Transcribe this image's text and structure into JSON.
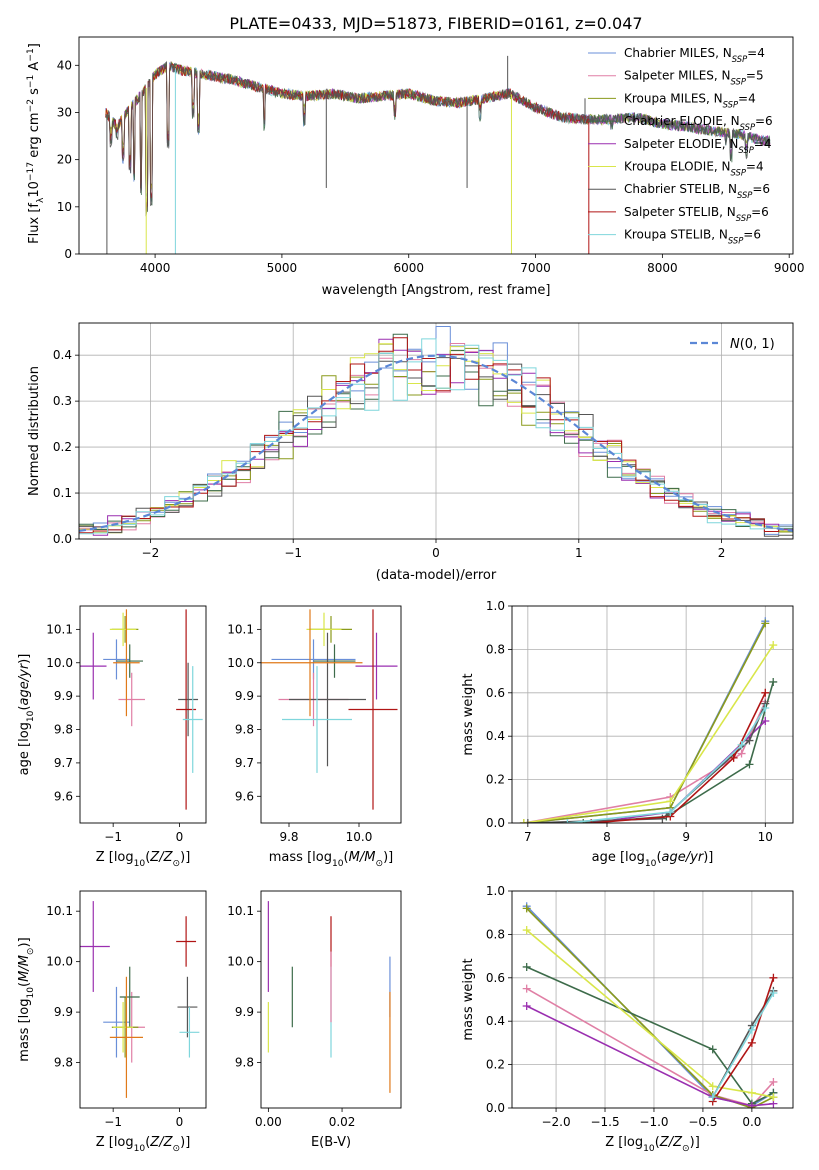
{
  "figure_title": "PLATE=0433, MJD=51873, FIBERID=0161, z=0.047",
  "colors": {
    "Chabrier MILES": "#6a8fd8",
    "Salpeter MILES": "#e07fa5",
    "Kroupa MILES": "#8a9a1c",
    "Chabrier ELODIE": "#3d6b4a",
    "Salpeter ELODIE": "#9a2fb0",
    "Kroupa ELODIE": "#d9e64a",
    "Chabrier STELIB": "#555555",
    "Salpeter STELIB": "#b01515",
    "Kroupa STELIB": "#7fd6dc",
    "gauss": "#5b87d6",
    "grid": "#b0b0b0",
    "orange": "#e07a1a"
  },
  "chart_data": [
    {
      "id": "spectrum",
      "type": "line",
      "title": "PLATE=0433, MJD=51873, FIBERID=0161, z=0.047",
      "xlabel": "wavelength [Angstrom, rest frame]",
      "ylabel": "Flux [f_λ10^-17 erg cm^-2 s^-1 A^-1]",
      "xlim": [
        3400,
        9030
      ],
      "ylim": [
        0,
        46
      ],
      "xticks": [
        "4000",
        "5000",
        "6000",
        "7000",
        "8000",
        "9000"
      ],
      "yticks": [
        "0",
        "10",
        "20",
        "30",
        "40"
      ],
      "grid": false,
      "legend": "upper-right",
      "legend_entries": [
        {
          "name": "Chabrier MILES",
          "nssp": "4"
        },
        {
          "name": "Salpeter MILES",
          "nssp": "5"
        },
        {
          "name": "Kroupa MILES",
          "nssp": "4"
        },
        {
          "name": "Chabrier ELODIE",
          "nssp": "6"
        },
        {
          "name": "Salpeter ELODIE",
          "nssp": "4"
        },
        {
          "name": "Kroupa ELODIE",
          "nssp": "4"
        },
        {
          "name": "Chabrier STELIB",
          "nssp": "6"
        },
        {
          "name": "Salpeter STELIB",
          "nssp": "6"
        },
        {
          "name": "Kroupa STELIB",
          "nssp": "6"
        }
      ],
      "continuum": [
        [
          3610,
          30
        ],
        [
          3700,
          27
        ],
        [
          3800,
          31
        ],
        [
          3900,
          34
        ],
        [
          4000,
          38
        ],
        [
          4100,
          40
        ],
        [
          4200,
          39
        ],
        [
          4400,
          38
        ],
        [
          4600,
          37
        ],
        [
          4800,
          35.5
        ],
        [
          5000,
          34
        ],
        [
          5200,
          33.5
        ],
        [
          5400,
          34
        ],
        [
          5600,
          33
        ],
        [
          5800,
          33.5
        ],
        [
          6000,
          34
        ],
        [
          6200,
          32.5
        ],
        [
          6400,
          32
        ],
        [
          6600,
          33
        ],
        [
          6800,
          34
        ],
        [
          7000,
          31
        ],
        [
          7200,
          29
        ],
        [
          7400,
          28.5
        ],
        [
          7600,
          28.5
        ],
        [
          7800,
          29
        ],
        [
          8000,
          27.5
        ],
        [
          8200,
          27
        ],
        [
          8400,
          26
        ],
        [
          8600,
          25.5
        ],
        [
          8800,
          24
        ]
      ],
      "absorption_lines": [
        [
          3650,
          22
        ],
        [
          3700,
          24
        ],
        [
          3750,
          19
        ],
        [
          3800,
          17
        ],
        [
          3835,
          15
        ],
        [
          3889,
          12
        ],
        [
          3934,
          8
        ],
        [
          3968,
          10
        ],
        [
          4101,
          22
        ],
        [
          4300,
          28
        ],
        [
          4340,
          25
        ],
        [
          4861,
          26
        ],
        [
          5175,
          27
        ],
        [
          5890,
          28
        ],
        [
          6563,
          28
        ],
        [
          7600,
          26
        ],
        [
          8498,
          23
        ],
        [
          8542,
          19
        ],
        [
          8662,
          20
        ]
      ],
      "spikes": [
        [
          4160,
          0,
          "Kroupa STELIB"
        ],
        [
          3930,
          0,
          "Kroupa ELODIE"
        ],
        [
          6810,
          0,
          "Kroupa ELODIE"
        ],
        [
          7420,
          0,
          "Salpeter STELIB"
        ],
        [
          3620,
          0,
          "Chabrier STELIB"
        ],
        [
          6780,
          42,
          "Chabrier STELIB"
        ],
        [
          5350,
          14,
          "Chabrier STELIB"
        ],
        [
          6460,
          14,
          "Chabrier STELIB"
        ],
        [
          7390,
          33,
          "Chabrier STELIB"
        ]
      ]
    },
    {
      "id": "residuals",
      "type": "histogram",
      "xlabel": "(data-model)/error",
      "ylabel": "Normed distribution",
      "xlim": [
        -2.5,
        2.5
      ],
      "ylim": [
        0,
        0.47
      ],
      "xticks": [
        "−2",
        "−1",
        "0",
        "1",
        "2"
      ],
      "yticks": [
        "0.0",
        "0.1",
        "0.2",
        "0.3",
        "0.4"
      ],
      "grid": true,
      "legend": "upper-right",
      "legend_label": "N(0,1)",
      "bin_width": 0.1,
      "curve": "gaussian(0,1)"
    },
    {
      "id": "age_vs_Z",
      "type": "scatter",
      "xlabel": "Z [log10(Z/Z_sun)]",
      "ylabel": "age [log10(age/yr)]",
      "xlim": [
        -1.5,
        0.4
      ],
      "ylim": [
        9.52,
        10.17
      ],
      "xticks": [
        "−1",
        "0"
      ],
      "yticks": [
        "9.6",
        "9.7",
        "9.8",
        "9.9",
        "10.0",
        "10.1"
      ],
      "points": [
        {
          "series": "Chabrier MILES",
          "x": -0.95,
          "y": 10.01,
          "xerr": 0.2,
          "yerr": 0.06
        },
        {
          "series": "Salpeter MILES",
          "x": -0.72,
          "y": 9.89,
          "xerr": 0.2,
          "yerr": 0.08
        },
        {
          "series": "Kroupa MILES",
          "x": -0.82,
          "y": 10.1,
          "xerr": 0.2,
          "yerr": 0.04
        },
        {
          "series": "Chabrier ELODIE",
          "x": -0.75,
          "y": 10.005,
          "xerr": 0.2,
          "yerr": 0.05
        },
        {
          "series": "Salpeter ELODIE",
          "x": -1.3,
          "y": 9.99,
          "xerr": 0.2,
          "yerr": 0.1
        },
        {
          "series": "Kroupa ELODIE",
          "x": -0.85,
          "y": 10.1,
          "xerr": 0.2,
          "yerr": 0.05
        },
        {
          "series": "Chabrier STELIB",
          "x": 0.13,
          "y": 9.89,
          "xerr": 0.15,
          "yerr": 0.11
        },
        {
          "series": "Salpeter STELIB",
          "x": 0.1,
          "y": 9.86,
          "xerr": 0.15,
          "yerr": 0.3
        },
        {
          "series": "Kroupa STELIB",
          "x": 0.2,
          "y": 9.83,
          "xerr": 0.15,
          "yerr": 0.16
        },
        {
          "series": "orange",
          "x": -0.8,
          "y": 10.0,
          "xerr": 0.2,
          "yerr": 0.16
        }
      ]
    },
    {
      "id": "age_vs_mass",
      "type": "scatter",
      "xlabel": "mass [log10(M/M_sun)]",
      "ylabel": "",
      "xlim": [
        9.72,
        10.12
      ],
      "ylim": [
        9.52,
        10.17
      ],
      "xticks": [
        "9.8",
        "10.0"
      ],
      "yticks": [
        "9.6",
        "9.7",
        "9.8",
        "9.9",
        "10.0",
        "10.1"
      ],
      "points": [
        {
          "series": "Chabrier MILES",
          "x": 9.87,
          "y": 10.01,
          "xerr": 0.12,
          "yerr": 0.06
        },
        {
          "series": "Salpeter MILES",
          "x": 9.87,
          "y": 9.89,
          "xerr": 0.1,
          "yerr": 0.08
        },
        {
          "series": "Kroupa MILES",
          "x": 9.92,
          "y": 10.1,
          "xerr": 0.06,
          "yerr": 0.04
        },
        {
          "series": "Chabrier ELODIE",
          "x": 9.93,
          "y": 10.005,
          "xerr": 0.06,
          "yerr": 0.05
        },
        {
          "series": "Salpeter ELODIE",
          "x": 10.05,
          "y": 9.99,
          "xerr": 0.06,
          "yerr": 0.1
        },
        {
          "series": "Kroupa ELODIE",
          "x": 9.9,
          "y": 10.1,
          "xerr": 0.05,
          "yerr": 0.05
        },
        {
          "series": "Chabrier STELIB",
          "x": 9.91,
          "y": 9.89,
          "xerr": 0.11,
          "yerr": 0.2
        },
        {
          "series": "Salpeter STELIB",
          "x": 10.04,
          "y": 9.86,
          "xerr": 0.07,
          "yerr": 0.3
        },
        {
          "series": "Kroupa STELIB",
          "x": 9.88,
          "y": 9.83,
          "xerr": 0.1,
          "yerr": 0.16
        },
        {
          "series": "orange",
          "x": 9.86,
          "y": 10.0,
          "xerr": 0.15,
          "yerr": 0.16
        }
      ]
    },
    {
      "id": "mw_vs_age",
      "type": "line",
      "xlabel": "age [log10(age/yr)]",
      "ylabel": "mass weight",
      "xlim": [
        6.8,
        10.35
      ],
      "ylim": [
        0,
        1.0
      ],
      "xticks": [
        "7",
        "8",
        "9",
        "10"
      ],
      "yticks": [
        "0.0",
        "0.2",
        "0.4",
        "0.6",
        "0.8",
        "1.0"
      ],
      "grid": true,
      "series": [
        {
          "name": "Chabrier MILES",
          "x": [
            6.95,
            8.8,
            10.0
          ],
          "y": [
            0.0,
            0.07,
            0.93
          ]
        },
        {
          "name": "Salpeter MILES",
          "x": [
            6.95,
            8.8,
            9.7,
            10.0
          ],
          "y": [
            0.0,
            0.12,
            0.32,
            0.56
          ]
        },
        {
          "name": "Kroupa MILES",
          "x": [
            6.95,
            8.8,
            10.0
          ],
          "y": [
            0.0,
            0.07,
            0.92
          ]
        },
        {
          "name": "Chabrier ELODIE",
          "x": [
            7.7,
            8.75,
            9.8,
            10.1
          ],
          "y": [
            0.0,
            0.03,
            0.27,
            0.65
          ]
        },
        {
          "name": "Salpeter ELODIE",
          "x": [
            7.8,
            8.8,
            10.0
          ],
          "y": [
            0.0,
            0.05,
            0.47
          ]
        },
        {
          "name": "Kroupa ELODIE",
          "x": [
            6.95,
            8.8,
            10.1
          ],
          "y": [
            0.0,
            0.1,
            0.82
          ]
        },
        {
          "name": "Chabrier STELIB",
          "x": [
            7.0,
            8.7,
            9.8,
            10.0
          ],
          "y": [
            0.0,
            0.02,
            0.38,
            0.55
          ]
        },
        {
          "name": "Salpeter STELIB",
          "x": [
            7.8,
            8.8,
            9.6,
            10.0
          ],
          "y": [
            0.0,
            0.03,
            0.3,
            0.6
          ]
        },
        {
          "name": "Kroupa STELIB",
          "x": [
            7.5,
            8.8,
            9.7,
            10.0
          ],
          "y": [
            0.0,
            0.05,
            0.36,
            0.53
          ]
        }
      ]
    },
    {
      "id": "mass_vs_Z",
      "type": "scatter",
      "xlabel": "Z [log10(Z/Z_sun)]",
      "ylabel": "mass [log10(M/M_sun)]",
      "xlim": [
        -1.5,
        0.4
      ],
      "ylim": [
        9.71,
        10.14
      ],
      "xticks": [
        "−1",
        "0"
      ],
      "yticks": [
        "9.8",
        "9.9",
        "10.0",
        "10.1"
      ],
      "points": [
        {
          "series": "Chabrier MILES",
          "x": -0.95,
          "y": 9.88,
          "xerr": 0.2,
          "yerr": 0.07
        },
        {
          "series": "Salpeter MILES",
          "x": -0.72,
          "y": 9.87,
          "xerr": 0.2,
          "yerr": 0.07
        },
        {
          "series": "Kroupa MILES",
          "x": -0.82,
          "y": 9.87,
          "xerr": 0.2,
          "yerr": 0.06
        },
        {
          "series": "Chabrier ELODIE",
          "x": -0.75,
          "y": 9.93,
          "xerr": 0.15,
          "yerr": 0.06
        },
        {
          "series": "Salpeter ELODIE",
          "x": -1.3,
          "y": 10.03,
          "xerr": 0.25,
          "yerr": 0.09
        },
        {
          "series": "Kroupa ELODIE",
          "x": -0.85,
          "y": 9.87,
          "xerr": 0.15,
          "yerr": 0.05
        },
        {
          "series": "Chabrier STELIB",
          "x": 0.12,
          "y": 9.91,
          "xerr": 0.15,
          "yerr": 0.06
        },
        {
          "series": "Salpeter STELIB",
          "x": 0.1,
          "y": 10.04,
          "xerr": 0.15,
          "yerr": 0.05
        },
        {
          "series": "Kroupa STELIB",
          "x": 0.15,
          "y": 9.86,
          "xerr": 0.15,
          "yerr": 0.05
        },
        {
          "series": "orange",
          "x": -0.8,
          "y": 9.85,
          "xerr": 0.25,
          "yerr": 0.12
        }
      ]
    },
    {
      "id": "mass_vs_ebv",
      "type": "scatter",
      "xlabel": "E(B-V)",
      "ylabel": "",
      "xlim": [
        -0.002,
        0.036
      ],
      "ylim": [
        9.71,
        10.14
      ],
      "xticks": [
        "0.00",
        "0.02"
      ],
      "yticks": [
        "9.8",
        "9.9",
        "10.0",
        "10.1"
      ],
      "points": [
        {
          "series": "Salpeter ELODIE",
          "x": 0.0,
          "y": 10.03,
          "yerr": 0.09
        },
        {
          "series": "Kroupa ELODIE",
          "x": 0.0,
          "y": 9.87,
          "yerr": 0.05
        },
        {
          "series": "Chabrier ELODIE",
          "x": 0.0065,
          "y": 9.93,
          "yerr": 0.06
        },
        {
          "series": "Salpeter STELIB",
          "x": 0.017,
          "y": 10.04,
          "yerr": 0.05
        },
        {
          "series": "Kroupa STELIB",
          "x": 0.017,
          "y": 9.9,
          "yerr": 0.09
        },
        {
          "series": "Salpeter MILES",
          "x": 0.017,
          "y": 9.95,
          "yerr": 0.07
        },
        {
          "series": "Chabrier MILES",
          "x": 0.033,
          "y": 9.95,
          "yerr": 0.06
        },
        {
          "series": "orange",
          "x": 0.033,
          "y": 9.84,
          "yerr": 0.1
        }
      ]
    },
    {
      "id": "mw_vs_Z",
      "type": "line",
      "xlabel": "Z [log10(Z/Z_sun)]",
      "ylabel": "mass weight",
      "xlim": [
        -2.45,
        0.42
      ],
      "ylim": [
        0,
        1.0
      ],
      "xticks": [
        "−2.0",
        "−1.5",
        "−1.0",
        "−0.5",
        "0.0"
      ],
      "yticks": [
        "0.0",
        "0.2",
        "0.4",
        "0.6",
        "0.8",
        "1.0"
      ],
      "grid": true,
      "series": [
        {
          "name": "Chabrier MILES",
          "x": [
            -2.3,
            -0.4,
            0.0,
            0.22
          ],
          "y": [
            0.93,
            0.05,
            0.01,
            0.07
          ]
        },
        {
          "name": "Salpeter MILES",
          "x": [
            -2.3,
            -0.4,
            0.0,
            0.22
          ],
          "y": [
            0.55,
            0.06,
            0.01,
            0.12
          ]
        },
        {
          "name": "Kroupa MILES",
          "x": [
            -2.3,
            -0.4,
            0.0,
            0.22
          ],
          "y": [
            0.92,
            0.06,
            0.0,
            0.05
          ]
        },
        {
          "name": "Chabrier ELODIE",
          "x": [
            -2.3,
            -0.4,
            0.0,
            0.22
          ],
          "y": [
            0.65,
            0.27,
            0.02,
            0.07
          ]
        },
        {
          "name": "Salpeter ELODIE",
          "x": [
            -2.3,
            -0.4,
            0.0,
            0.22
          ],
          "y": [
            0.47,
            0.05,
            0.01,
            0.02
          ]
        },
        {
          "name": "Kroupa ELODIE",
          "x": [
            -2.3,
            -0.4,
            0.0,
            0.22
          ],
          "y": [
            0.82,
            0.1,
            0.07,
            0.05
          ]
        },
        {
          "name": "Chabrier STELIB",
          "x": [
            -0.4,
            0.0,
            0.22
          ],
          "y": [
            0.05,
            0.38,
            0.54
          ]
        },
        {
          "name": "Salpeter STELIB",
          "x": [
            -0.4,
            0.0,
            0.22
          ],
          "y": [
            0.03,
            0.3,
            0.6
          ]
        },
        {
          "name": "Kroupa STELIB",
          "x": [
            -0.4,
            0.0,
            0.22
          ],
          "y": [
            0.05,
            0.36,
            0.53
          ]
        }
      ]
    }
  ]
}
